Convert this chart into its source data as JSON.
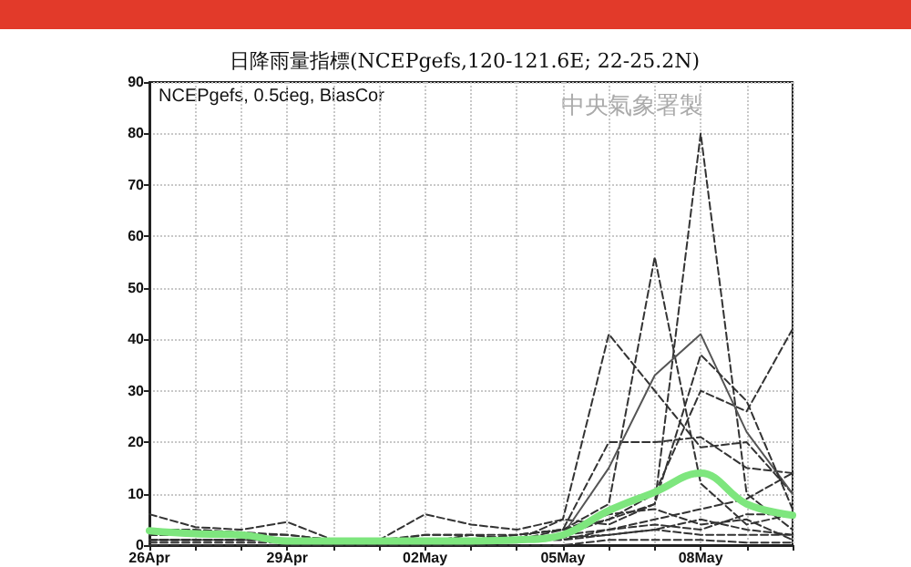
{
  "chart_data": {
    "type": "line",
    "title": "日降雨量指標(NCEPgefs,120-121.6E; 22-25.2N)",
    "annotations": [
      "NCEPgefs, 0.5deg, BiasCor",
      "中央氣象署製"
    ],
    "x": [
      "--04-26",
      "--04-27",
      "--04-28",
      "--04-29",
      "--04-30",
      "--05-01",
      "--05-02",
      "--05-03",
      "--05-04",
      "--05-05",
      "--05-06",
      "--05-07",
      "--05-08",
      "--05-09",
      "--05-10"
    ],
    "xlim": [
      "--04-26",
      "--05-10"
    ],
    "xticks": [
      {
        "value": "--04-26",
        "label": "26Apr"
      },
      {
        "value": "--04-27",
        "label": null
      },
      {
        "value": "--04-28",
        "label": null
      },
      {
        "value": "--04-29",
        "label": "29Apr"
      },
      {
        "value": "--04-30",
        "label": null
      },
      {
        "value": "--05-01",
        "label": null
      },
      {
        "value": "--05-02",
        "label": "02May"
      },
      {
        "value": "--05-03",
        "label": null
      },
      {
        "value": "--05-04",
        "label": null
      },
      {
        "value": "--05-05",
        "label": "05May"
      },
      {
        "value": "--05-06",
        "label": null
      },
      {
        "value": "--05-07",
        "label": null
      },
      {
        "value": "--05-08",
        "label": "08May"
      },
      {
        "value": "--05-09",
        "label": null
      },
      {
        "value": "--05-10",
        "label": null
      }
    ],
    "ylim": [
      0,
      90
    ],
    "yticks": [
      0,
      10,
      20,
      30,
      40,
      50,
      60,
      70,
      80,
      90
    ],
    "grid": true,
    "marker": "none",
    "line_style": "dashed",
    "series": [
      {
        "color": "#333333",
        "values": [
          6,
          3.5,
          3,
          4.5,
          1,
          1,
          1,
          1,
          1,
          1.5,
          2,
          3,
          5,
          3,
          2
        ]
      },
      {
        "color": "#333333",
        "values": [
          3,
          3,
          2.5,
          2,
          1,
          1,
          6,
          4,
          3,
          5,
          4,
          8,
          80,
          10,
          3
        ]
      },
      {
        "color": "#333333",
        "values": [
          1,
          1,
          1,
          1,
          0.5,
          0.5,
          2,
          2,
          1,
          3,
          8,
          56,
          12,
          4,
          6
        ]
      },
      {
        "color": "#333333",
        "values": [
          2,
          2,
          2,
          2,
          1,
          1,
          2,
          2,
          1,
          5,
          41,
          30,
          19,
          20,
          10
        ]
      },
      {
        "color": "#333333",
        "values": [
          1,
          1,
          1,
          1,
          0.5,
          0.5,
          1,
          1,
          2,
          3,
          20,
          20,
          21,
          15,
          14
        ]
      },
      {
        "color": "#333333",
        "values": [
          0.5,
          0.5,
          0.5,
          0.5,
          0.5,
          0.5,
          0.5,
          1,
          1,
          2,
          5,
          10,
          30,
          26,
          42
        ]
      },
      {
        "color": "#555555",
        "line_style": "solid",
        "values": [
          1,
          1,
          1,
          1,
          0.5,
          0.5,
          0.5,
          0.5,
          0.5,
          2,
          15,
          33,
          41,
          22,
          10
        ]
      },
      {
        "color": "#333333",
        "values": [
          1,
          1,
          1,
          1,
          1,
          1,
          1,
          1,
          2,
          3,
          5,
          8,
          37,
          28,
          7
        ]
      },
      {
        "color": "#333333",
        "values": [
          1,
          1,
          1,
          1,
          1,
          1,
          1,
          1,
          1,
          2,
          3,
          5,
          7,
          9,
          14
        ]
      },
      {
        "color": "#333333",
        "values": [
          2,
          2,
          2,
          1,
          1,
          1,
          1,
          1,
          1,
          1,
          3,
          4,
          3,
          6,
          6
        ]
      },
      {
        "color": "#333333",
        "values": [
          1,
          1,
          1,
          1,
          1,
          1,
          1,
          1,
          1,
          1,
          2,
          3,
          2,
          2,
          2
        ]
      },
      {
        "color": "#333333",
        "values": [
          0,
          0,
          0,
          0,
          0,
          0,
          0,
          0,
          0,
          0,
          1,
          1,
          1,
          0.5,
          0.5
        ]
      },
      {
        "color": "#333333",
        "values": [
          2,
          2,
          1.5,
          1,
          0.5,
          0.5,
          0.5,
          2,
          2,
          3,
          6,
          7,
          4,
          5,
          1
        ]
      },
      {
        "color": "#7ee67e",
        "line_style": "solid",
        "values": [
          2.8,
          2.2,
          2,
          0.8,
          0.8,
          0.8,
          0.8,
          0.8,
          1,
          2,
          6.7,
          10.3,
          14,
          8,
          5.8
        ]
      }
    ]
  }
}
